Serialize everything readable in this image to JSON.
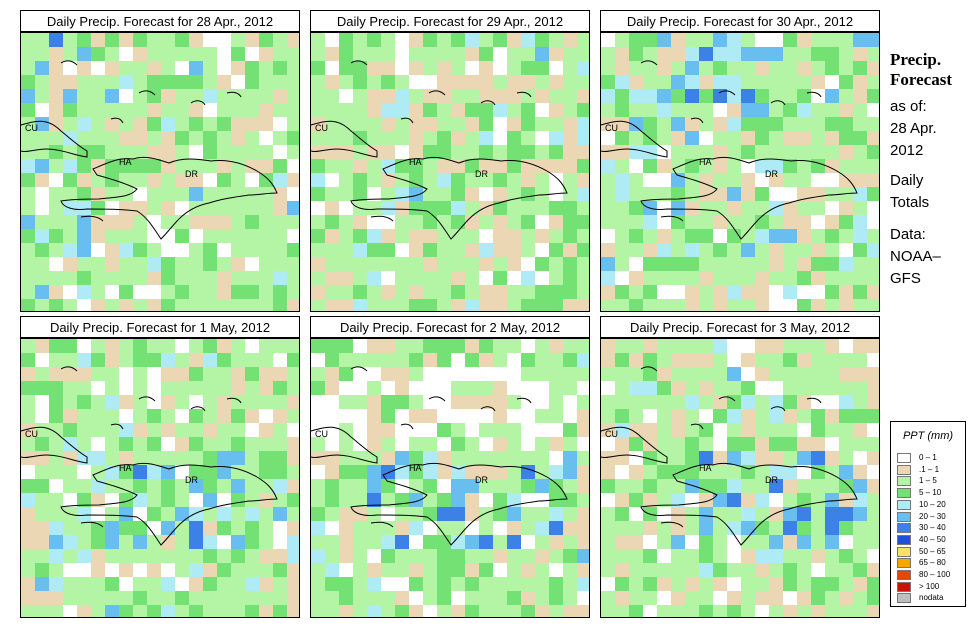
{
  "panels": [
    {
      "title": "Daily Precip. Forecast for  28 Apr., 2012",
      "date": "28 Apr., 2012"
    },
    {
      "title": "Daily Precip. Forecast for  29 Apr., 2012",
      "date": "29 Apr., 2012"
    },
    {
      "title": "Daily Precip. Forecast for  30 Apr., 2012",
      "date": "30 Apr., 2012"
    },
    {
      "title": "Daily Precip. Forecast for  1 May, 2012",
      "date": "1 May, 2012"
    },
    {
      "title": "Daily Precip. Forecast for  2 May, 2012",
      "date": "2 May, 2012"
    },
    {
      "title": "Daily Precip. Forecast for  3 May, 2012",
      "date": "3 May, 2012"
    }
  ],
  "map_labels": {
    "cuba": "CU",
    "haiti": "HA",
    "dominican_republic": "DR"
  },
  "side": {
    "title_line1": "Precip.",
    "title_line2": "Forecast",
    "asof_label": "as of:",
    "asof_date_line1": "28 Apr.",
    "asof_date_line2": "2012",
    "totals_line1": "Daily",
    "totals_line2": "Totals",
    "data_line1": "Data:",
    "data_line2": "NOAA–",
    "data_line3": "GFS"
  },
  "legend": {
    "title": "PPT (mm)",
    "items": [
      {
        "label": "0 – 1",
        "color": "#ffffff"
      },
      {
        "label": ".1 – 1",
        "color": "#ecd7b4"
      },
      {
        "label": "1 – 5",
        "color": "#b4f5a5"
      },
      {
        "label": "5 – 10",
        "color": "#73e173"
      },
      {
        "label": "10 – 20",
        "color": "#afebf5"
      },
      {
        "label": "20 – 30",
        "color": "#69bef0"
      },
      {
        "label": "30 – 40",
        "color": "#3c82e6"
      },
      {
        "label": "40 – 50",
        "color": "#1e50dc"
      },
      {
        "label": "50 – 65",
        "color": "#fae164"
      },
      {
        "label": "65 – 80",
        "color": "#faa500"
      },
      {
        "label": "80 – 100",
        "color": "#e64600"
      },
      {
        "label": "> 100",
        "color": "#c81400"
      },
      {
        "label": "nodata",
        "color": "#bebebe"
      }
    ]
  }
}
